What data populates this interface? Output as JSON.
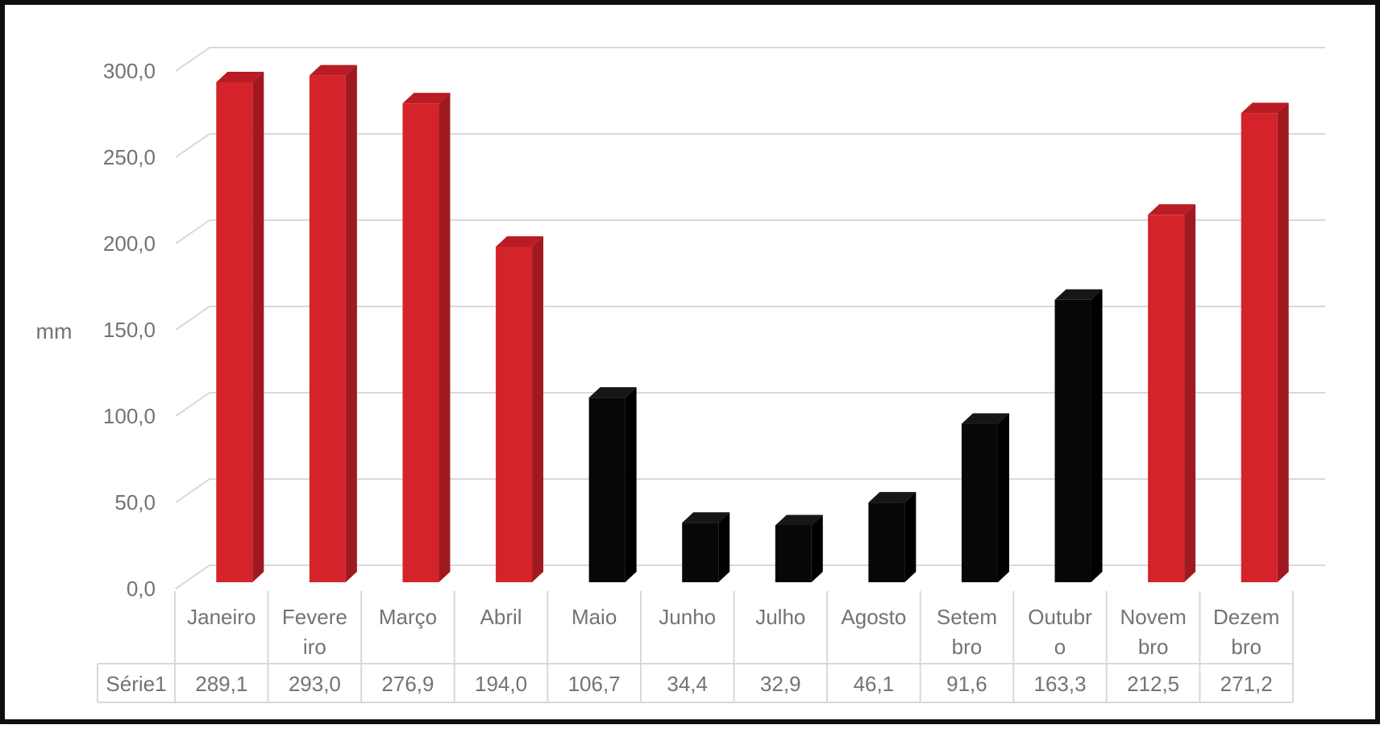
{
  "chart_data": {
    "type": "bar",
    "projection": "3d",
    "title": "",
    "xlabel": "",
    "ylabel": "mm",
    "ylim": [
      0,
      300
    ],
    "ytick_step": 50,
    "ytick_labels": [
      "0,0",
      "50,0",
      "100,0",
      "150,0",
      "200,0",
      "250,0",
      "300,0"
    ],
    "grid": true,
    "legend": "none",
    "data_table_shown": true,
    "categories": [
      "Janeiro",
      "Fevereiro",
      "Março",
      "Abril",
      "Maio",
      "Junho",
      "Julho",
      "Agosto",
      "Setembro",
      "Outubro",
      "Novembro",
      "Dezembro"
    ],
    "category_display_lines": [
      [
        "Janeiro"
      ],
      [
        "Fevere",
        "iro"
      ],
      [
        "Março"
      ],
      [
        "Abril"
      ],
      [
        "Maio"
      ],
      [
        "Junho"
      ],
      [
        "Julho"
      ],
      [
        "Agosto"
      ],
      [
        "Setem",
        "bro"
      ],
      [
        "Outubr",
        "o"
      ],
      [
        "Novem",
        "bro"
      ],
      [
        "Dezem",
        "bro"
      ]
    ],
    "series": [
      {
        "name": "Série1",
        "values": [
          289.1,
          293.0,
          276.9,
          194.0,
          106.7,
          34.4,
          32.9,
          46.1,
          91.6,
          163.3,
          212.5,
          271.2
        ],
        "values_display": [
          "289,1",
          "293,0",
          "276,9",
          "194,0",
          "106,7",
          "34,4",
          "32,9",
          "46,1",
          "91,6",
          "163,3",
          "212,5",
          "271,2"
        ]
      }
    ],
    "bar_color_keys": [
      "red",
      "red",
      "red",
      "red",
      "black",
      "black",
      "black",
      "black",
      "black",
      "black",
      "red",
      "red"
    ],
    "colors": {
      "red_front": "#d5232b",
      "red_top": "#b91c23",
      "red_side": "#a01920",
      "black_front": "#070707",
      "black_top": "#161616",
      "black_side": "#000000",
      "gridline": "#d9d9d9",
      "table_border": "#d9d9d9",
      "text": "#737373",
      "frame": "#0f0f0f"
    }
  }
}
